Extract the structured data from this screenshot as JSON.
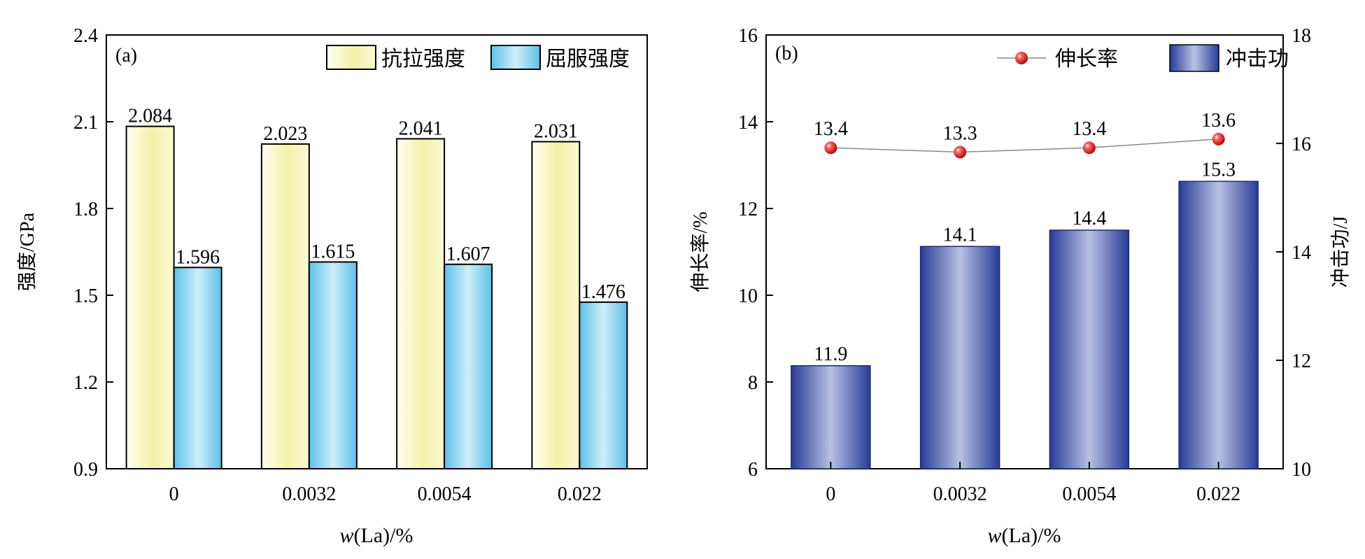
{
  "chart_data": [
    {
      "type": "bar",
      "panel_label": "(a)",
      "categories": [
        "0",
        "0.0032",
        "0.0054",
        "0.022"
      ],
      "series": [
        {
          "name": "抗拉强度",
          "values": [
            2.084,
            2.023,
            2.041,
            2.031
          ],
          "value_labels": [
            "2.084",
            "2.023",
            "2.041",
            "2.031"
          ],
          "color_edge": "#fffff0",
          "color_center": "#f2f0a6"
        },
        {
          "name": "屈服强度",
          "values": [
            1.596,
            1.615,
            1.607,
            1.476
          ],
          "value_labels": [
            "1.596",
            "1.615",
            "1.607",
            "1.476"
          ],
          "color_edge": "#64c2e8",
          "color_center": "#c8ecf9"
        }
      ],
      "ylabel": "强度/GPa",
      "xlabel_italic": "w",
      "xlabel_rest": "(La)/%",
      "ylim": [
        0.9,
        2.4
      ],
      "yticks": [
        "0.9",
        "1.2",
        "1.5",
        "1.8",
        "2.1",
        "2.4"
      ],
      "legend_position": "top-right",
      "grid": false
    },
    {
      "type": "bar+line",
      "panel_label": "(b)",
      "categories": [
        "0",
        "0.0032",
        "0.0054",
        "0.022"
      ],
      "line_series": {
        "name": "伸长率",
        "values": [
          13.4,
          13.3,
          13.4,
          13.6
        ],
        "value_labels": [
          "13.4",
          "13.3",
          "13.4",
          "13.6"
        ],
        "axis": "left",
        "marker_color": "#e02020"
      },
      "bar_series": {
        "name": "冲击功",
        "values": [
          11.9,
          14.1,
          14.4,
          15.3
        ],
        "value_labels": [
          "11.9",
          "14.1",
          "14.4",
          "15.3"
        ],
        "axis": "right",
        "color_edge": "#2a3f98",
        "color_center": "#b3bde0"
      },
      "ylabel_left": "伸长率/%",
      "ylabel_right": "冲击功/J",
      "xlabel_italic": "w",
      "xlabel_rest": "(La)/%",
      "ylim_left": [
        6,
        16
      ],
      "ylim_right": [
        10,
        18
      ],
      "yticks_left": [
        "6",
        "8",
        "10",
        "12",
        "14",
        "16"
      ],
      "yticks_right": [
        "10",
        "12",
        "14",
        "16",
        "18"
      ],
      "legend_position": "top-right",
      "grid": false
    }
  ]
}
